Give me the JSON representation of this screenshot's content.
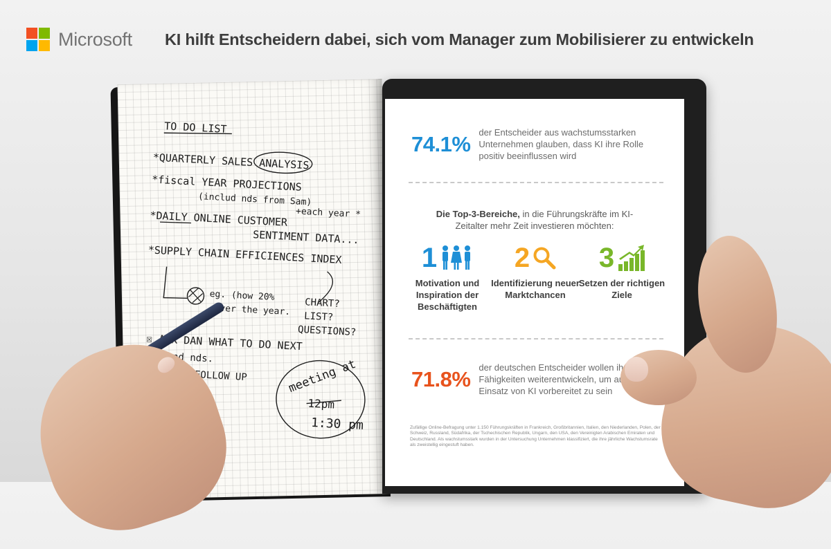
{
  "brand": {
    "name": "Microsoft",
    "colors": [
      "#f25022",
      "#7fba00",
      "#00a4ef",
      "#ffb900"
    ]
  },
  "headline": "KI hilft Entscheidern dabei, sich vom Manager zum Mobilisierer zu entwickeln",
  "notebook": {
    "heading": "TO DO LIST",
    "lines": [
      "*QUARTERLY SALES ANALYSIS",
      "*fiscal YEAR PROJECTIONS",
      "(includ nds from Sam)",
      "*DAILY ONLINE CUSTOMER",
      "+each year *",
      "SENTIMENT DATA...",
      "*SUPPLY CHAIN EFFICIENCES INDEX",
      "eg. (how 20%",
      "over the year.",
      "CHART?",
      "LIST?",
      "QUESTIONS?",
      "☒ ASK DAN WHAT TO DO NEXT",
      "-Kend nds.",
      "-FOLLOW UP",
      "meeting at",
      "12pm",
      "1:30 pm"
    ]
  },
  "tablet": {
    "stat1": {
      "value": "74.1%",
      "text": "der Entscheider aus wachstumsstarken Unternehmen glauben, dass KI ihre Rolle positiv beeinflussen wird",
      "color": "#1e8fd6"
    },
    "top3": {
      "bold": "Die Top-3-Bereiche,",
      "rest": " in die Führungskräfte im KI-Zeitalter mehr Zeit investieren möchten:"
    },
    "areas": [
      {
        "number": "1",
        "icon": "people-icon",
        "label": "Motivation und Inspiration der Beschäftigten",
        "color": "#1e8fd6"
      },
      {
        "number": "2",
        "icon": "magnifier-icon",
        "label": "Identifizierung neuer Marktchancen",
        "color": "#f5a623"
      },
      {
        "number": "3",
        "icon": "growth-chart-icon",
        "label": "Setzen der richtigen Ziele",
        "color": "#79b72a"
      }
    ],
    "stat2": {
      "value": "71.8%",
      "text": "der deutschen Entscheider wollen ihre Fähigkeiten weiterentwickeln, um auf den Einsatz von KI vorbereitet zu sein",
      "color": "#e8531d"
    },
    "footnote": "Zufällige Online-Befragung unter 1.150 Führungskräften in Frankreich, Großbritannien, Italien, den Niederlanden, Polen, der Schweiz, Russland, Südafrika, der Tschechischen Republik, Ungarn, den USA, den Vereinigten Arabischen Emiraten und Deutschland. Als wachstumsstark wurden in der Untersuchung Unternehmen klassifiziert, die ihre jährliche Wachstumsrate als zweistellig eingestuft haben."
  }
}
